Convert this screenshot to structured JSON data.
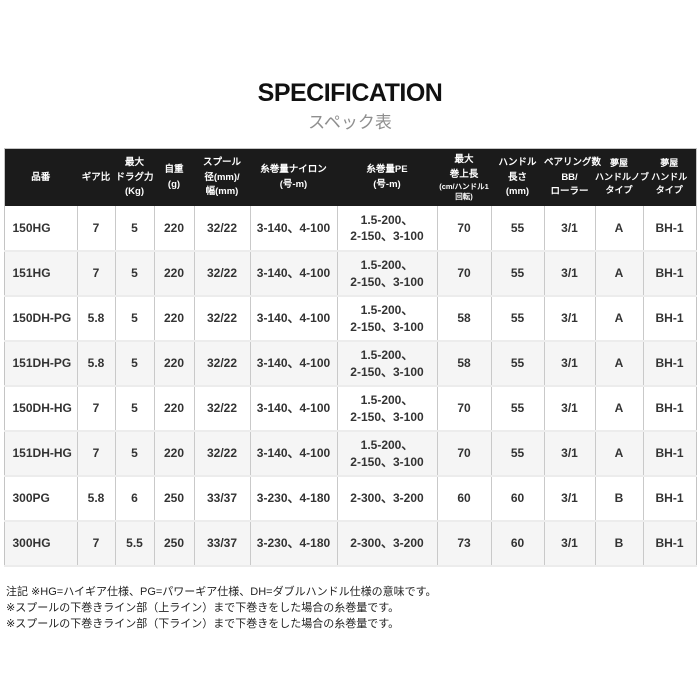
{
  "page": {
    "title": "SPECIFICATION",
    "subtitle": "スペック表"
  },
  "table": {
    "columns": [
      {
        "label": "品番"
      },
      {
        "label": "ギア比"
      },
      {
        "label": "最大\nドラグ力\n(Kg)"
      },
      {
        "label": "自重\n(g)"
      },
      {
        "label": "スプール\n径(mm)/\n幅(mm)"
      },
      {
        "label": "糸巻量ナイロン\n(号-m)"
      },
      {
        "label": "糸巻量PE\n(号-m)"
      },
      {
        "label": "最大\n巻上長",
        "sub": "(cm/ハンドル1\n回転)"
      },
      {
        "label": "ハンドル\n長さ\n(mm)"
      },
      {
        "label": "ベアリング数\nBB/\nローラー"
      },
      {
        "label": "夢屋\nハンドルノブ\nタイプ",
        "small": true
      },
      {
        "label": "夢屋\nハンドル\nタイプ",
        "small": true
      }
    ],
    "rows": [
      [
        "150HG",
        "7",
        "5",
        "220",
        "32/22",
        "3-140、4-100",
        "1.5-200、\n2-150、3-100",
        "70",
        "55",
        "3/1",
        "A",
        "BH-1"
      ],
      [
        "151HG",
        "7",
        "5",
        "220",
        "32/22",
        "3-140、4-100",
        "1.5-200、\n2-150、3-100",
        "70",
        "55",
        "3/1",
        "A",
        "BH-1"
      ],
      [
        "150DH-PG",
        "5.8",
        "5",
        "220",
        "32/22",
        "3-140、4-100",
        "1.5-200、\n2-150、3-100",
        "58",
        "55",
        "3/1",
        "A",
        "BH-1"
      ],
      [
        "151DH-PG",
        "5.8",
        "5",
        "220",
        "32/22",
        "3-140、4-100",
        "1.5-200、\n2-150、3-100",
        "58",
        "55",
        "3/1",
        "A",
        "BH-1"
      ],
      [
        "150DH-HG",
        "7",
        "5",
        "220",
        "32/22",
        "3-140、4-100",
        "1.5-200、\n2-150、3-100",
        "70",
        "55",
        "3/1",
        "A",
        "BH-1"
      ],
      [
        "151DH-HG",
        "7",
        "5",
        "220",
        "32/22",
        "3-140、4-100",
        "1.5-200、\n2-150、3-100",
        "70",
        "55",
        "3/1",
        "A",
        "BH-1"
      ],
      [
        "300PG",
        "5.8",
        "6",
        "250",
        "33/37",
        "3-230、4-180",
        "2-300、3-200",
        "60",
        "60",
        "3/1",
        "B",
        "BH-1"
      ],
      [
        "300HG",
        "7",
        "5.5",
        "250",
        "33/37",
        "3-230、4-180",
        "2-300、3-200",
        "73",
        "60",
        "3/1",
        "B",
        "BH-1"
      ]
    ]
  },
  "notes": [
    "注記 ※HG=ハイギア仕様、PG=パワーギア仕様、DH=ダブルハンドル仕様の意味です。",
    "※スプールの下巻きライン部（上ライン）まで下巻きをした場合の糸巻量です。",
    "※スプールの下巻きライン部（下ライン）まで下巻きをした場合の糸巻量です。"
  ],
  "colors": {
    "header_bg": "#1b1b1b",
    "header_text": "#ffffff",
    "row_alt_bg": "#f5f5f5",
    "body_text": "#333333",
    "border": "#c9c9c9",
    "subtitle_text": "#8f8f8f"
  }
}
